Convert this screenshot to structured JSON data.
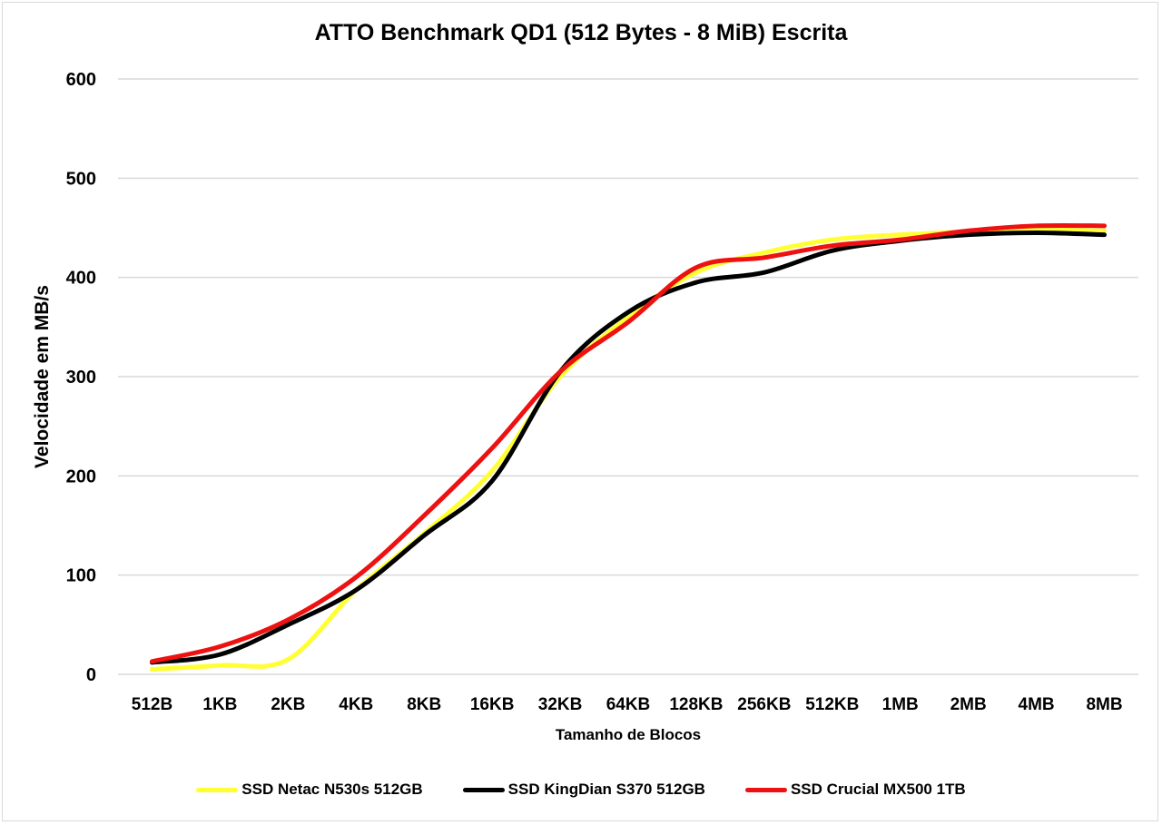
{
  "chart_data": {
    "type": "line",
    "title": "ATTO Benchmark QD1 (512 Bytes - 8 MiB) Escrita",
    "xlabel": "Tamanho de Blocos",
    "ylabel": "Velocidade em MB/s",
    "ylim": [
      0,
      600
    ],
    "yticks": [
      0,
      100,
      200,
      300,
      400,
      500,
      600
    ],
    "grid": true,
    "legend_position": "bottom",
    "categories": [
      "512B",
      "1KB",
      "2KB",
      "4KB",
      "8KB",
      "16KB",
      "32KB",
      "64KB",
      "128KB",
      "256KB",
      "512KB",
      "1MB",
      "2MB",
      "4MB",
      "8MB"
    ],
    "series": [
      {
        "name": "SSD Netac N530s 512GB",
        "color": "#FFFF33",
        "values": [
          5,
          9,
          15,
          85,
          142,
          205,
          300,
          360,
          405,
          425,
          438,
          443,
          446,
          448,
          447
        ]
      },
      {
        "name": "SSD KingDian S370 512GB",
        "color": "#000000",
        "values": [
          12,
          20,
          50,
          85,
          140,
          195,
          305,
          365,
          395,
          405,
          427,
          437,
          443,
          445,
          443
        ]
      },
      {
        "name": "SSD Crucial MX500 1TB",
        "color": "#EE1111",
        "values": [
          13,
          28,
          55,
          98,
          160,
          228,
          305,
          355,
          410,
          420,
          432,
          438,
          447,
          452,
          452
        ]
      }
    ]
  }
}
